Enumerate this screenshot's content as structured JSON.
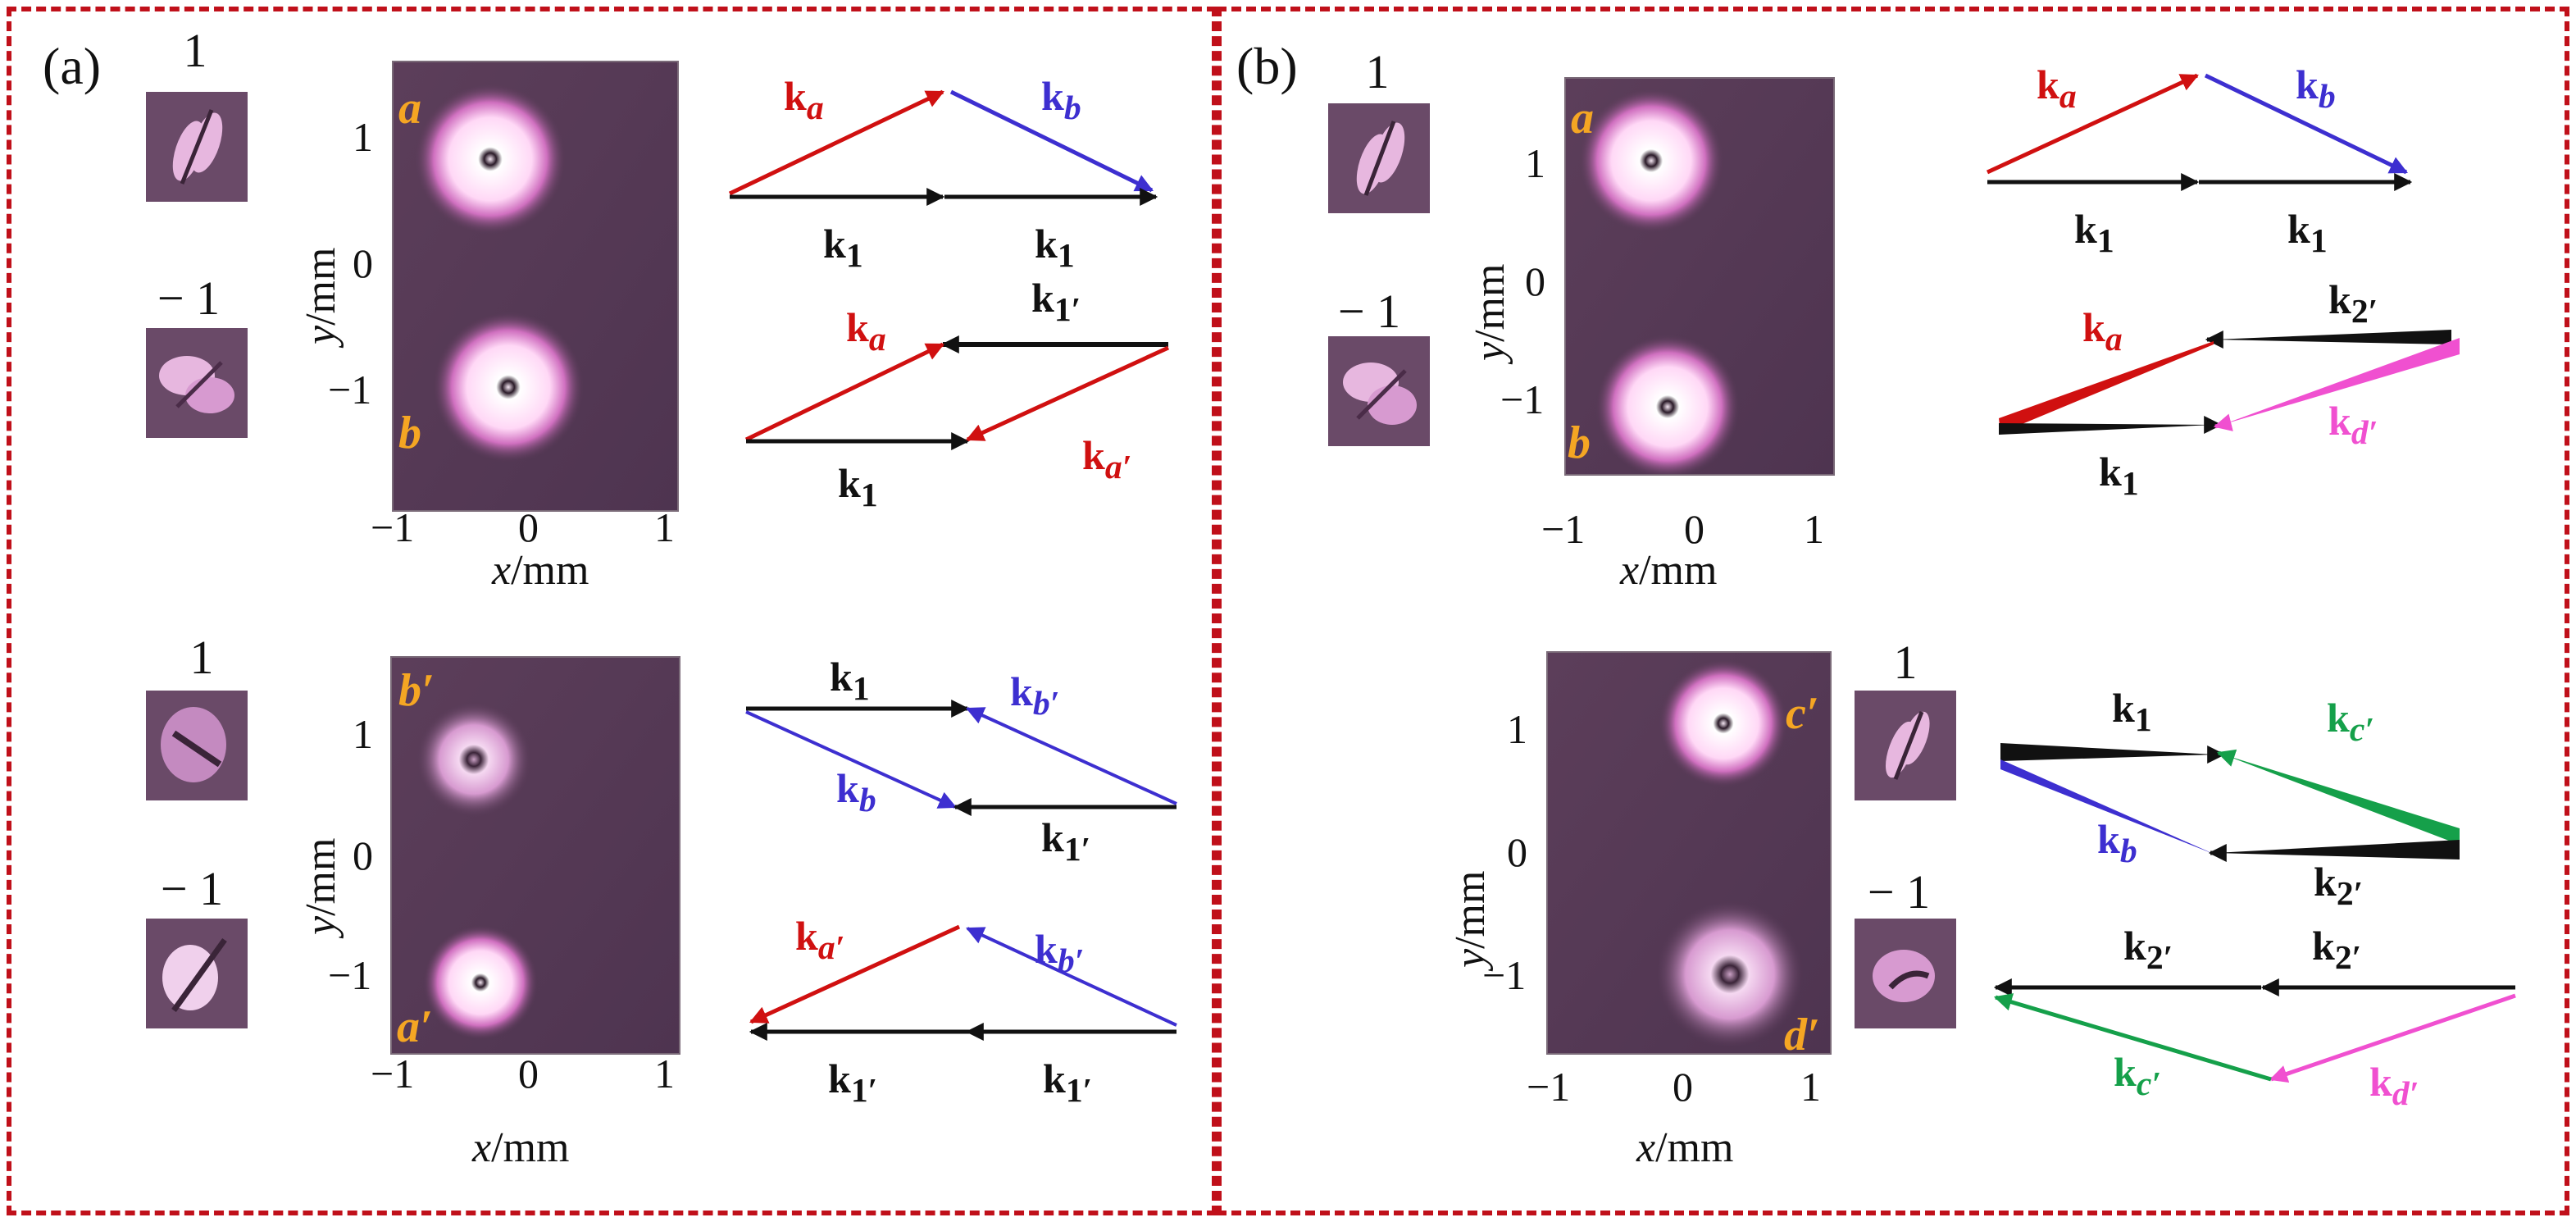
{
  "panels": {
    "a": {
      "label": "(a)"
    },
    "b": {
      "label": "(b)"
    }
  },
  "mode_labels": {
    "plus": "1",
    "minus": "− 1"
  },
  "axes": {
    "x_title_var": "x",
    "x_title_unit": "/mm",
    "y_title_var": "y",
    "y_title_unit": "/mm",
    "x_ticks": [
      "−1",
      "0",
      "1"
    ],
    "y_ticks": [
      "1",
      "0",
      "−1"
    ]
  },
  "spots": {
    "a": "a",
    "b": "b",
    "a_prime": "a′",
    "b_prime": "b′",
    "c_prime": "c′",
    "d_prime": "d′"
  },
  "wave_vectors": {
    "k": "k",
    "sub_1": "1",
    "sub_1p": "1′",
    "sub_2p": "2′",
    "sub_a": "a",
    "sub_b": "b",
    "sub_ap": "a′",
    "sub_bp": "b′",
    "sub_cp": "c′",
    "sub_dp": "d′"
  },
  "colors": {
    "frame": "#c0101a",
    "red": "#d01010",
    "blue": "#3d2fd0",
    "black": "#111111",
    "magenta": "#f050d0",
    "green": "#15a04a",
    "spot_label": "#f5a623",
    "background": "#5a3a58"
  }
}
